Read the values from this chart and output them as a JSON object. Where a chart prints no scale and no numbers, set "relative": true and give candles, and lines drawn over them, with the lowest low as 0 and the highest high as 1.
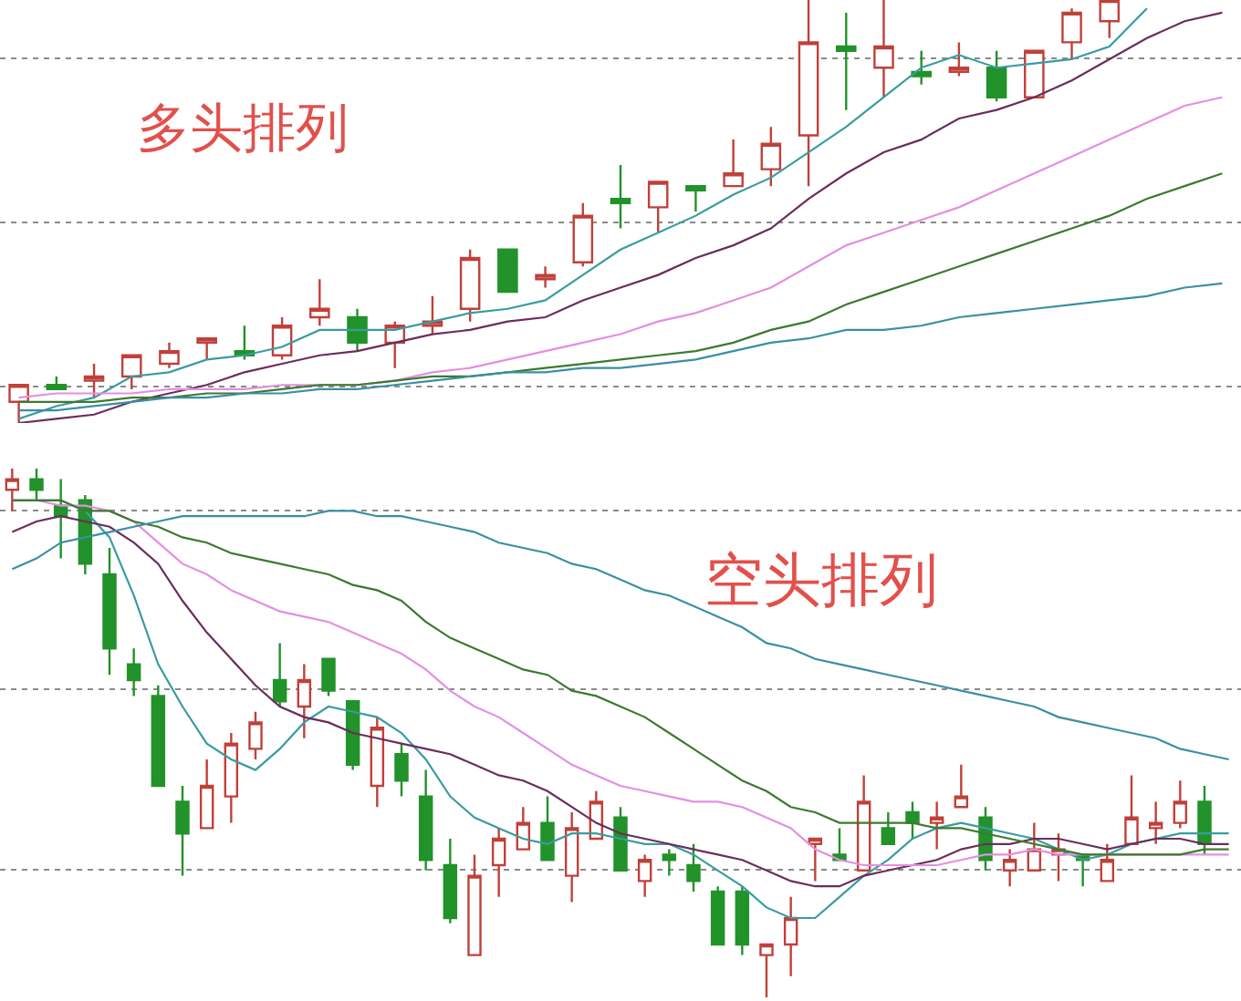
{
  "chart_data": [
    {
      "type": "candlestick",
      "relative": true,
      "grid": "y",
      "annotations": [
        "多头排列"
      ],
      "categories": [
        null,
        null,
        null,
        null,
        null,
        null,
        null,
        null,
        null,
        null,
        null,
        null,
        null,
        null,
        null,
        null,
        null,
        null,
        null,
        null,
        null,
        null,
        null,
        null,
        null,
        null,
        null,
        null,
        null,
        null,
        null,
        null,
        null
      ],
      "ohlc": [
        [
          0.05,
          0.09,
          0,
          0.09
        ],
        [
          0.09,
          0.11,
          0.08,
          0.08
        ],
        [
          0.1,
          0.14,
          0.06,
          0.11
        ],
        [
          0.11,
          0.16,
          0.08,
          0.16
        ],
        [
          0.14,
          0.19,
          0.13,
          0.17
        ],
        [
          0.19,
          0.2,
          0.15,
          0.2
        ],
        [
          0.17,
          0.23,
          0.15,
          0.16
        ],
        [
          0.16,
          0.25,
          0.15,
          0.23
        ],
        [
          0.25,
          0.34,
          0.23,
          0.27
        ],
        [
          0.25,
          0.27,
          0.17,
          0.19
        ],
        [
          0.19,
          0.24,
          0.13,
          0.23
        ],
        [
          0.23,
          0.3,
          0.21,
          0.24
        ],
        [
          0.27,
          0.41,
          0.24,
          0.39
        ],
        [
          0.41,
          0.41,
          0.31,
          0.31
        ],
        [
          0.34,
          0.37,
          0.32,
          0.35
        ],
        [
          0.38,
          0.52,
          0.37,
          0.49
        ],
        [
          0.53,
          0.61,
          0.46,
          0.52
        ],
        [
          0.51,
          0.57,
          0.45,
          0.57
        ],
        [
          0.56,
          0.56,
          0.5,
          0.55
        ],
        [
          0.56,
          0.67,
          0.56,
          0.59
        ],
        [
          0.6,
          0.7,
          0.56,
          0.66
        ],
        [
          0.68,
          1,
          0.56,
          0.9
        ],
        [
          0.89,
          0.97,
          0.74,
          0.88
        ],
        [
          0.84,
          1,
          0.77,
          0.89
        ],
        [
          0.83,
          0.88,
          0.8,
          0.82
        ],
        [
          0.83,
          0.9,
          0.82,
          0.84
        ],
        [
          0.84,
          0.88,
          0.76,
          0.77
        ],
        [
          0.77,
          0.88,
          0.77,
          0.88
        ],
        [
          0.9,
          0.98,
          0.86,
          0.97
        ],
        [
          0.95,
          1,
          0.91,
          1
        ],
        null,
        null,
        null
      ],
      "series": [
        {
          "type": "line",
          "color": "#3a9ca0",
          "values": [
            0.01,
            0.04,
            0.06,
            0.11,
            0.12,
            0.15,
            0.16,
            0.18,
            0.22,
            0.22,
            0.22,
            0.24,
            0.26,
            0.27,
            0.29,
            0.35,
            0.41,
            0.45,
            0.49,
            0.54,
            0.58,
            0.64,
            0.7,
            0.77,
            0.84,
            0.87,
            0.84,
            0.85,
            0.86,
            0.89,
            0.98,
            null,
            null
          ]
        },
        {
          "type": "line",
          "color": "#6b2d5c",
          "values": [
            0.0,
            0.01,
            0.02,
            0.05,
            0.07,
            0.09,
            0.12,
            0.14,
            0.16,
            0.17,
            0.19,
            0.21,
            0.22,
            0.24,
            0.25,
            0.29,
            0.32,
            0.35,
            0.39,
            0.42,
            0.46,
            0.53,
            0.59,
            0.64,
            0.67,
            0.72,
            0.74,
            0.77,
            0.81,
            0.86,
            0.91,
            0.95,
            0.97
          ]
        },
        {
          "type": "line",
          "color": "#e48ee4",
          "values": [
            0.06,
            0.07,
            0.07,
            0.07,
            0.08,
            0.08,
            0.08,
            0.09,
            0.09,
            0.09,
            0.1,
            0.12,
            0.13,
            0.15,
            0.17,
            0.19,
            0.21,
            0.24,
            0.26,
            0.29,
            0.32,
            0.37,
            0.42,
            0.45,
            0.48,
            0.51,
            0.55,
            0.59,
            0.63,
            0.67,
            0.71,
            0.75,
            0.77
          ]
        },
        {
          "type": "line",
          "color": "#3c7a2e",
          "values": [
            0.05,
            0.05,
            0.05,
            0.06,
            0.06,
            0.07,
            0.07,
            0.08,
            0.09,
            0.09,
            0.1,
            0.11,
            0.11,
            0.12,
            0.13,
            0.14,
            0.15,
            0.16,
            0.17,
            0.19,
            0.22,
            0.24,
            0.28,
            0.31,
            0.34,
            0.37,
            0.4,
            0.43,
            0.46,
            0.49,
            0.53,
            0.56,
            0.59
          ]
        },
        {
          "type": "line",
          "color": "#3b8fa3",
          "values": [
            0.03,
            0.03,
            0.04,
            0.05,
            0.06,
            0.06,
            0.07,
            0.07,
            0.08,
            0.08,
            0.09,
            0.1,
            0.11,
            0.12,
            0.12,
            0.13,
            0.13,
            0.14,
            0.15,
            0.17,
            0.19,
            0.2,
            0.22,
            0.22,
            0.23,
            0.25,
            0.26,
            0.27,
            0.28,
            0.29,
            0.3,
            0.32,
            0.33
          ]
        }
      ]
    },
    {
      "type": "candlestick",
      "relative": true,
      "grid": "y",
      "annotations": [
        "空头排列"
      ],
      "categories": [
        null,
        null,
        null,
        null,
        null,
        null,
        null,
        null,
        null,
        null,
        null,
        null,
        null,
        null,
        null,
        null,
        null,
        null,
        null,
        null,
        null,
        null,
        null,
        null,
        null,
        null,
        null,
        null,
        null,
        null,
        null,
        null,
        null,
        null,
        null,
        null,
        null,
        null,
        null,
        null,
        null,
        null,
        null,
        null,
        null,
        null,
        null,
        null,
        null,
        null,
        null
      ],
      "ohlc": [
        [
          0.96,
          1,
          0.92,
          0.98
        ],
        [
          0.98,
          1,
          0.94,
          0.96
        ],
        [
          0.93,
          0.98,
          0.83,
          0.91
        ],
        [
          0.94,
          0.95,
          0.8,
          0.82
        ],
        [
          0.8,
          0.85,
          0.61,
          0.66
        ],
        [
          0.63,
          0.66,
          0.57,
          0.6
        ],
        [
          0.57,
          0.59,
          0.4,
          0.4
        ],
        [
          0.37,
          0.4,
          0.23,
          0.31
        ],
        [
          0.32,
          0.45,
          0.32,
          0.4
        ],
        [
          0.38,
          0.5,
          0.33,
          0.48
        ],
        [
          0.47,
          0.54,
          0.45,
          0.52
        ],
        [
          0.6,
          0.67,
          0.55,
          0.56
        ],
        [
          0.55,
          0.63,
          0.49,
          0.6
        ],
        [
          0.64,
          0.64,
          0.57,
          0.58
        ],
        [
          0.56,
          0.56,
          0.43,
          0.44
        ],
        [
          0.4,
          0.53,
          0.36,
          0.51
        ],
        [
          0.46,
          0.48,
          0.38,
          0.41
        ],
        [
          0.38,
          0.43,
          0.24,
          0.26
        ],
        [
          0.25,
          0.3,
          0.14,
          0.15
        ],
        [
          0.08,
          0.27,
          0.08,
          0.23
        ],
        [
          0.25,
          0.32,
          0.19,
          0.3
        ],
        [
          0.28,
          0.36,
          0.28,
          0.33
        ],
        [
          0.33,
          0.38,
          0.26,
          0.26
        ],
        [
          0.23,
          0.35,
          0.18,
          0.32
        ],
        [
          0.3,
          0.39,
          0.3,
          0.37
        ],
        [
          0.34,
          0.36,
          0.24,
          0.24
        ],
        [
          0.22,
          0.27,
          0.19,
          0.26
        ],
        [
          0.27,
          0.28,
          0.23,
          0.26
        ],
        [
          0.25,
          0.29,
          0.2,
          0.22
        ],
        [
          0.2,
          0.21,
          0.1,
          0.1
        ],
        [
          0.2,
          0.21,
          0.08,
          0.1
        ],
        [
          0.08,
          0.1,
          0,
          0.1
        ],
        [
          0.1,
          0.19,
          0.04,
          0.15
        ],
        [
          0.29,
          0.3,
          0.22,
          0.3
        ],
        [
          0.27,
          0.32,
          0.26,
          0.26
        ],
        [
          0.24,
          0.42,
          0.24,
          0.37
        ],
        [
          0.32,
          0.35,
          0.29,
          0.29
        ],
        [
          0.35,
          0.37,
          0.3,
          0.33
        ],
        [
          0.33,
          0.37,
          0.28,
          0.34
        ],
        [
          0.36,
          0.44,
          0.36,
          0.38
        ],
        [
          0.34,
          0.36,
          0.24,
          0.26
        ],
        [
          0.24,
          0.28,
          0.21,
          0.26
        ],
        [
          0.24,
          0.33,
          0.24,
          0.28
        ],
        [
          0.27,
          0.31,
          0.22,
          0.28
        ],
        [
          0.27,
          0.27,
          0.21,
          0.26
        ],
        [
          0.22,
          0.29,
          0.22,
          0.26
        ],
        [
          0.29,
          0.42,
          0.29,
          0.34
        ],
        [
          0.32,
          0.37,
          0.29,
          0.33
        ],
        [
          0.33,
          0.41,
          0.32,
          0.37
        ],
        [
          0.37,
          0.4,
          0.27,
          0.29
        ],
        null
      ],
      "series": [
        {
          "type": "line",
          "color": "#3a9ca0",
          "values": [
            0.94,
            0.94,
            0.94,
            0.92,
            0.87,
            0.76,
            0.63,
            0.55,
            0.48,
            0.45,
            0.43,
            0.47,
            0.52,
            0.55,
            0.54,
            0.53,
            0.5,
            0.45,
            0.38,
            0.34,
            0.32,
            0.3,
            0.29,
            0.31,
            0.31,
            0.3,
            0.29,
            0.29,
            0.27,
            0.24,
            0.21,
            0.17,
            0.15,
            0.15,
            0.19,
            0.23,
            0.26,
            0.3,
            0.32,
            0.33,
            0.32,
            0.31,
            0.3,
            0.28,
            0.26,
            0.27,
            0.29,
            0.3,
            0.31,
            0.31,
            0.31
          ]
        },
        {
          "type": "line",
          "color": "#6b2d5c",
          "values": [
            0.88,
            0.9,
            0.91,
            0.9,
            0.89,
            0.86,
            0.82,
            0.75,
            0.69,
            0.64,
            0.59,
            0.55,
            0.53,
            0.52,
            0.5,
            0.49,
            0.48,
            0.47,
            0.46,
            0.44,
            0.42,
            0.41,
            0.39,
            0.36,
            0.33,
            0.31,
            0.3,
            0.29,
            0.28,
            0.27,
            0.26,
            0.24,
            0.22,
            0.21,
            0.21,
            0.23,
            0.24,
            0.25,
            0.26,
            0.28,
            0.29,
            0.29,
            0.3,
            0.3,
            0.29,
            0.28,
            0.29,
            0.3,
            0.3,
            0.29,
            0.29
          ]
        },
        {
          "type": "line",
          "color": "#e48ee4",
          "values": [
            0.94,
            0.94,
            0.93,
            0.93,
            0.92,
            0.9,
            0.86,
            0.82,
            0.8,
            0.77,
            0.75,
            0.73,
            0.72,
            0.71,
            0.69,
            0.67,
            0.65,
            0.62,
            0.58,
            0.55,
            0.53,
            0.5,
            0.47,
            0.44,
            0.42,
            0.4,
            0.39,
            0.38,
            0.37,
            0.37,
            0.36,
            0.34,
            0.32,
            0.28,
            0.26,
            0.25,
            0.25,
            0.25,
            0.25,
            0.26,
            0.27,
            0.27,
            0.28,
            0.27,
            0.27,
            0.27,
            0.27,
            0.27,
            0.27,
            0.27,
            0.27
          ]
        },
        {
          "type": "line",
          "color": "#3c7a2e",
          "values": [
            0.94,
            0.94,
            0.94,
            0.92,
            0.92,
            0.9,
            0.89,
            0.87,
            0.86,
            0.84,
            0.83,
            0.82,
            0.81,
            0.8,
            0.78,
            0.77,
            0.75,
            0.71,
            0.68,
            0.66,
            0.64,
            0.62,
            0.61,
            0.58,
            0.57,
            0.55,
            0.53,
            0.5,
            0.47,
            0.44,
            0.41,
            0.39,
            0.36,
            0.35,
            0.33,
            0.33,
            0.33,
            0.33,
            0.32,
            0.32,
            0.31,
            0.3,
            0.29,
            0.28,
            0.27,
            0.27,
            0.27,
            0.27,
            0.27,
            0.28,
            0.28
          ]
        },
        {
          "type": "line",
          "color": "#3b8fa3",
          "values": [
            0.81,
            0.83,
            0.86,
            0.87,
            0.88,
            0.89,
            0.9,
            0.91,
            0.91,
            0.91,
            0.91,
            0.91,
            0.91,
            0.92,
            0.92,
            0.91,
            0.91,
            0.9,
            0.89,
            0.88,
            0.86,
            0.85,
            0.84,
            0.82,
            0.81,
            0.79,
            0.77,
            0.76,
            0.74,
            0.72,
            0.7,
            0.67,
            0.66,
            0.64,
            0.63,
            0.62,
            0.61,
            0.6,
            0.59,
            0.58,
            0.57,
            0.56,
            0.55,
            0.53,
            0.52,
            0.51,
            0.5,
            0.49,
            0.47,
            0.46,
            0.45
          ]
        }
      ]
    }
  ]
}
